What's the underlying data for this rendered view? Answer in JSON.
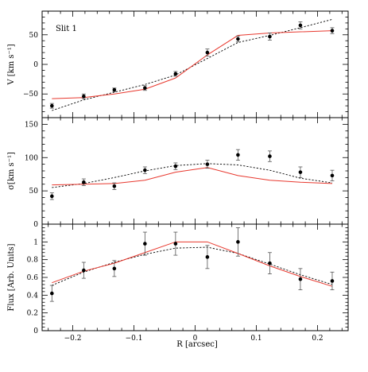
{
  "chart_data": {
    "type": "scatter",
    "annotation": "Slit 1",
    "xlabel": "R [arcsec]",
    "xlim": [
      -0.25,
      0.25
    ],
    "xticks": [
      -0.2,
      -0.1,
      0,
      0.1,
      0.2
    ],
    "xtick_labels": [
      "−0.2",
      "−0.1",
      "0",
      "0.1",
      "0.2"
    ],
    "colors": {
      "data": "#000000",
      "model_solid": "#e8392f",
      "model_dotted": "#000000"
    },
    "panels": [
      {
        "id": "velocity",
        "ylabel": "V [km s⁻¹]",
        "ylim": [
          -90,
          90
        ],
        "yticks": [
          -50,
          0,
          50
        ],
        "ytick_labels": [
          "−50",
          "0",
          "50"
        ],
        "data": {
          "x": [
            -0.234,
            -0.182,
            -0.132,
            -0.082,
            -0.032,
            0.02,
            0.07,
            0.122,
            0.172,
            0.224
          ],
          "y": [
            -70,
            -54,
            -43,
            -40,
            -16,
            20,
            43,
            47,
            66,
            57
          ],
          "err": [
            4,
            4,
            3,
            4,
            4,
            6,
            5,
            6,
            6,
            5
          ]
        },
        "model_solid": {
          "x": [
            -0.234,
            -0.182,
            -0.132,
            -0.082,
            -0.032,
            0.02,
            0.07,
            0.122,
            0.172,
            0.224
          ],
          "y": [
            -58,
            -56,
            -50,
            -42,
            -23,
            16,
            49,
            53,
            55,
            57
          ]
        },
        "model_dotted": {
          "x": [
            -0.234,
            -0.182,
            -0.132,
            -0.082,
            -0.032,
            0.02,
            0.07,
            0.122,
            0.172,
            0.224
          ],
          "y": [
            -78,
            -60,
            -47,
            -34,
            -18,
            10,
            37,
            49,
            62,
            76
          ]
        }
      },
      {
        "id": "dispersion",
        "ylabel": "σ[km s⁻¹]",
        "ylim": [
          0,
          160
        ],
        "yticks": [
          0,
          50,
          100,
          150
        ],
        "ytick_labels": [
          "0",
          "50",
          "100",
          "150"
        ],
        "data": {
          "x": [
            -0.234,
            -0.182,
            -0.132,
            -0.082,
            -0.032,
            0.02,
            0.07,
            0.122,
            0.172,
            0.224
          ],
          "y": [
            42,
            63,
            57,
            81,
            87,
            90,
            104,
            102,
            78,
            73
          ],
          "err": [
            5,
            5,
            5,
            5,
            5,
            6,
            8,
            8,
            8,
            8
          ]
        },
        "model_solid": {
          "x": [
            -0.234,
            -0.182,
            -0.132,
            -0.082,
            -0.032,
            0.02,
            0.07,
            0.122,
            0.172,
            0.224
          ],
          "y": [
            59,
            60,
            61,
            66,
            78,
            85,
            73,
            66,
            63,
            61
          ]
        },
        "model_dotted": {
          "x": [
            -0.234,
            -0.182,
            -0.132,
            -0.082,
            -0.032,
            0.02,
            0.07,
            0.122,
            0.172,
            0.224
          ],
          "y": [
            55,
            61,
            70,
            80,
            88,
            91,
            89,
            81,
            69,
            62
          ]
        }
      },
      {
        "id": "flux",
        "ylabel": "Flux [Arb. Units]",
        "ylim": [
          0,
          1.2
        ],
        "yticks": [
          0,
          0.2,
          0.4,
          0.6,
          0.8,
          1
        ],
        "ytick_labels": [
          "0",
          "0.2",
          "0.4",
          "0.6",
          "0.8",
          "1"
        ],
        "data": {
          "x": [
            -0.234,
            -0.182,
            -0.132,
            -0.082,
            -0.032,
            0.02,
            0.07,
            0.122,
            0.172,
            0.224
          ],
          "y": [
            0.42,
            0.68,
            0.7,
            0.98,
            0.98,
            0.83,
            1.0,
            0.76,
            0.58,
            0.56
          ],
          "err": [
            0.09,
            0.09,
            0.09,
            0.13,
            0.13,
            0.13,
            0.16,
            0.12,
            0.12,
            0.1
          ]
        },
        "model_solid": {
          "x": [
            -0.234,
            -0.182,
            -0.132,
            -0.082,
            -0.032,
            0.02,
            0.07,
            0.122,
            0.172,
            0.224
          ],
          "y": [
            0.54,
            0.67,
            0.76,
            0.88,
            1.0,
            1.0,
            0.87,
            0.73,
            0.61,
            0.5
          ]
        },
        "model_dotted": {
          "x": [
            -0.234,
            -0.182,
            -0.132,
            -0.082,
            -0.032,
            0.02,
            0.07,
            0.122,
            0.172,
            0.224
          ],
          "y": [
            0.51,
            0.66,
            0.77,
            0.86,
            0.93,
            0.94,
            0.87,
            0.75,
            0.63,
            0.52
          ]
        }
      }
    ]
  }
}
